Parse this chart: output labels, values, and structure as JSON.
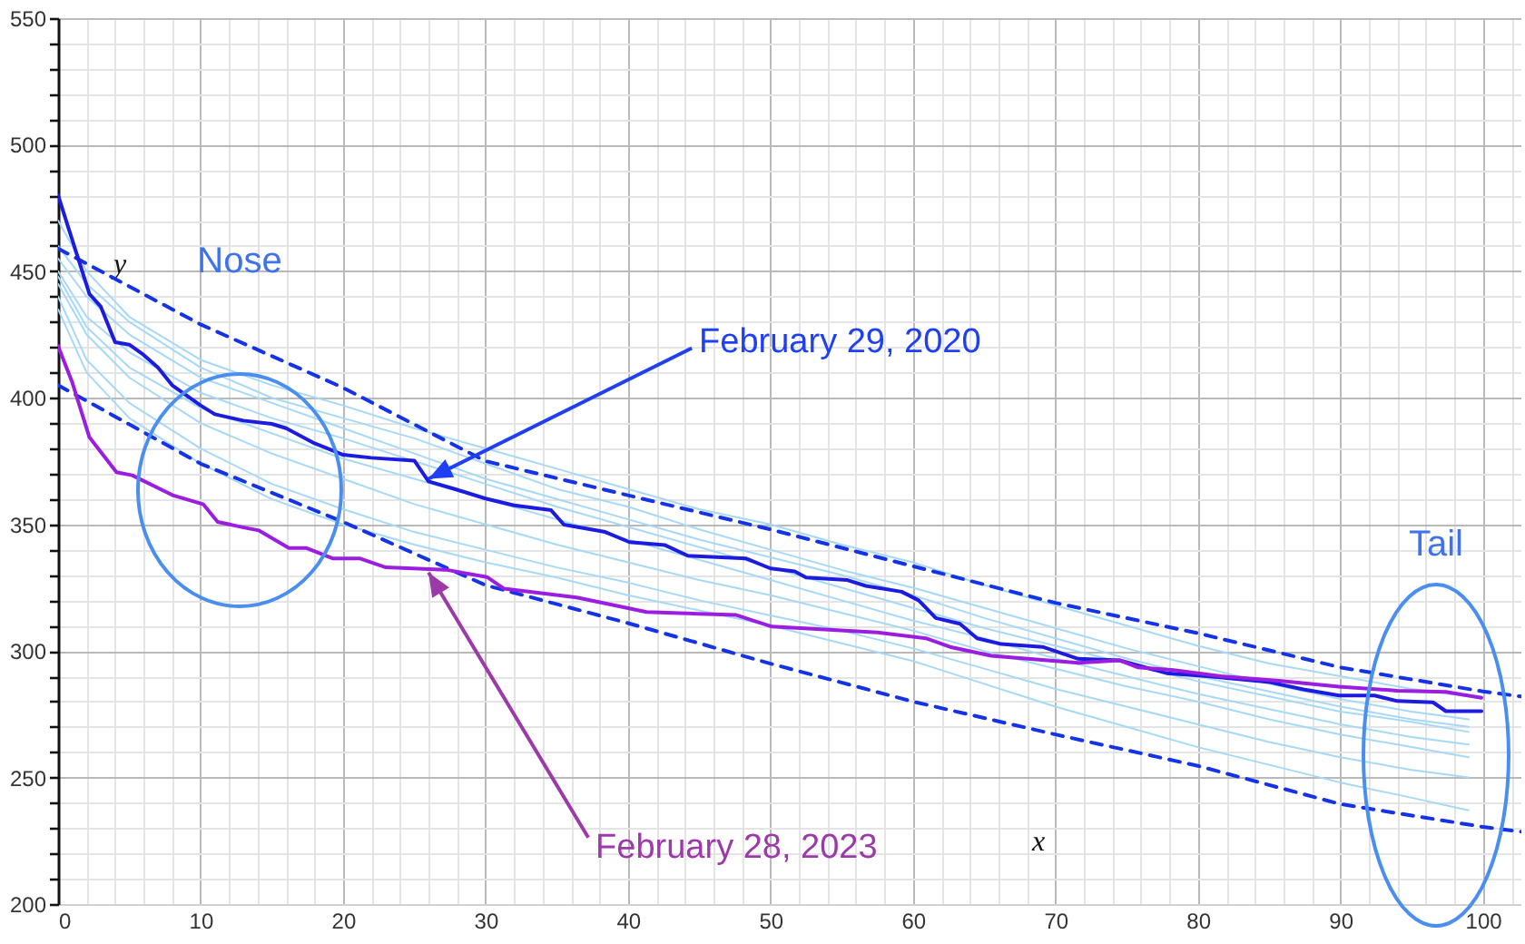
{
  "chart_data": {
    "type": "line",
    "xlabel": "x",
    "ylabel": "y",
    "xlim": [
      0,
      102.7
    ],
    "ylim": [
      200,
      550
    ],
    "xticks": [
      0,
      {
        "value": 2,
        "label": null
      },
      {
        "value": 4,
        "label": null
      },
      {
        "value": 6,
        "label": null
      },
      {
        "value": 8,
        "label": null
      },
      10,
      {
        "value": 12,
        "label": null
      },
      {
        "value": 14,
        "label": null
      },
      {
        "value": 16,
        "label": null
      },
      {
        "value": 18,
        "label": null
      },
      20,
      {
        "value": 22,
        "label": null
      },
      {
        "value": 24,
        "label": null
      },
      {
        "value": 26,
        "label": null
      },
      {
        "value": 28,
        "label": null
      },
      30,
      {
        "value": 32,
        "label": null
      },
      {
        "value": 34,
        "label": null
      },
      {
        "value": 36,
        "label": null
      },
      {
        "value": 38,
        "label": null
      },
      40,
      {
        "value": 42,
        "label": null
      },
      {
        "value": 44,
        "label": null
      },
      {
        "value": 46,
        "label": null
      },
      {
        "value": 48,
        "label": null
      },
      50,
      {
        "value": 52,
        "label": null
      },
      {
        "value": 54,
        "label": null
      },
      {
        "value": 56,
        "label": null
      },
      {
        "value": 58,
        "label": null
      },
      60,
      {
        "value": 62,
        "label": null
      },
      {
        "value": 64,
        "label": null
      },
      {
        "value": 66,
        "label": null
      },
      {
        "value": 68,
        "label": null
      },
      70,
      {
        "value": 72,
        "label": null
      },
      {
        "value": 74,
        "label": null
      },
      {
        "value": 76,
        "label": null
      },
      {
        "value": 78,
        "label": null
      },
      80,
      {
        "value": 82,
        "label": null
      },
      {
        "value": 84,
        "label": null
      },
      {
        "value": 86,
        "label": null
      },
      {
        "value": 88,
        "label": null
      },
      90,
      {
        "value": 92,
        "label": null
      },
      {
        "value": 94,
        "label": null
      },
      {
        "value": 96,
        "label": null
      },
      {
        "value": 98,
        "label": null
      },
      100,
      {
        "value": 102,
        "label": null
      }
    ],
    "yticks": [
      200,
      {
        "value": 210,
        "label": null
      },
      {
        "value": 220,
        "label": null
      },
      {
        "value": 230,
        "label": null
      },
      {
        "value": 240,
        "label": null
      },
      250,
      {
        "value": 260,
        "label": null
      },
      {
        "value": 270,
        "label": null
      },
      {
        "value": 280,
        "label": null
      },
      {
        "value": 290,
        "label": null
      },
      300,
      {
        "value": 310,
        "label": null
      },
      {
        "value": 320,
        "label": null
      },
      {
        "value": 330,
        "label": null
      },
      {
        "value": 340,
        "label": null
      },
      350,
      {
        "value": 360,
        "label": null
      },
      {
        "value": 370,
        "label": null
      },
      {
        "value": 380,
        "label": null
      },
      {
        "value": 390,
        "label": null
      },
      400,
      {
        "value": 410,
        "label": null
      },
      {
        "value": 420,
        "label": null
      },
      {
        "value": 430,
        "label": null
      },
      {
        "value": 440,
        "label": null
      },
      450,
      {
        "value": 460,
        "label": null
      },
      {
        "value": 470,
        "label": null
      },
      {
        "value": 480,
        "label": null
      },
      {
        "value": 490,
        "label": null
      },
      500,
      {
        "value": 510,
        "label": null
      },
      {
        "value": 520,
        "label": null
      },
      {
        "value": 530,
        "label": null
      },
      {
        "value": 540,
        "label": null
      },
      550
    ],
    "grid": true,
    "marker": "none",
    "annotations": [
      "Nose",
      "Tail",
      {
        "text": "February 29, 2020",
        "x": 26,
        "y": 368
      },
      {
        "text": "February 28, 2023",
        "x": 26,
        "y": 331
      }
    ],
    "series": [
      {
        "color": "#a6d8f7",
        "x": [
          0,
          2,
          5,
          10,
          15,
          20,
          25,
          30,
          35,
          40,
          45,
          50,
          55,
          60,
          65,
          70,
          75,
          80,
          85,
          90,
          95,
          99
        ],
        "values": [
          470,
          450,
          432,
          415,
          405,
          397,
          388,
          380,
          372,
          364,
          356,
          350,
          342,
          335,
          326,
          318,
          310,
          302,
          295,
          290,
          285,
          282
        ]
      },
      {
        "color": "#a6d8f7",
        "x": [
          0,
          2,
          5,
          10,
          15,
          20,
          25,
          30,
          35,
          40,
          45,
          50,
          55,
          60,
          65,
          70,
          75,
          80,
          85,
          90,
          95,
          99
        ],
        "values": [
          460,
          445,
          430,
          412,
          400,
          392,
          384,
          374,
          364,
          357,
          348,
          340,
          332,
          325,
          317,
          309,
          301,
          294,
          287,
          281,
          276,
          273
        ]
      },
      {
        "color": "#a6d8f7",
        "x": [
          0,
          2,
          5,
          10,
          15,
          20,
          25,
          30,
          35,
          40,
          45,
          50,
          55,
          60,
          65,
          70,
          75,
          80,
          85,
          90,
          95,
          99
        ],
        "values": [
          455,
          440,
          425,
          408,
          398,
          388,
          378,
          368,
          360,
          352,
          344,
          337,
          330,
          322,
          313,
          305,
          297,
          290,
          284,
          278,
          273,
          270
        ]
      },
      {
        "color": "#a6d8f7",
        "x": [
          0,
          2,
          5,
          10,
          15,
          20,
          25,
          30,
          35,
          40,
          45,
          50,
          55,
          60,
          65,
          70,
          75,
          80,
          85,
          90,
          95,
          99
        ],
        "values": [
          450,
          432,
          418,
          402,
          392,
          384,
          375,
          366,
          357,
          349,
          341,
          333,
          325,
          317,
          309,
          302,
          295,
          288,
          282,
          276,
          272,
          268
        ]
      },
      {
        "color": "#a6d8f7",
        "x": [
          0,
          2,
          5,
          10,
          15,
          20,
          25,
          30,
          35,
          40,
          45,
          50,
          55,
          60,
          65,
          70,
          75,
          80,
          85,
          90,
          95,
          99
        ],
        "values": [
          448,
          428,
          412,
          396,
          386,
          376,
          368,
          360,
          352,
          344,
          336,
          328,
          320,
          312,
          305,
          297,
          290,
          283,
          277,
          271,
          266,
          263
        ]
      },
      {
        "color": "#a6d8f7",
        "x": [
          0,
          2,
          5,
          10,
          15,
          20,
          25,
          30,
          35,
          40,
          45,
          50,
          55,
          60,
          65,
          70,
          75,
          80,
          85,
          90,
          95,
          99
        ],
        "values": [
          445,
          425,
          408,
          390,
          378,
          368,
          358,
          350,
          342,
          335,
          328,
          322,
          315,
          308,
          300,
          293,
          286,
          280,
          273,
          267,
          262,
          258
        ]
      },
      {
        "color": "#a6d8f7",
        "x": [
          0,
          2,
          5,
          10,
          15,
          20,
          25,
          30,
          35,
          40,
          45,
          50,
          55,
          60,
          65,
          70,
          75,
          80,
          85,
          90,
          95,
          99
        ],
        "values": [
          440,
          415,
          398,
          380,
          366,
          356,
          347,
          340,
          333,
          327,
          320,
          314,
          308,
          301,
          293,
          285,
          278,
          271,
          264,
          258,
          253,
          250
        ]
      },
      {
        "color": "#a6d8f7",
        "x": [
          0,
          2,
          5,
          10,
          15,
          20,
          25,
          30,
          35,
          40,
          45,
          50,
          55,
          60,
          65,
          70,
          75,
          80,
          85,
          90,
          95,
          99
        ],
        "values": [
          435,
          410,
          392,
          374,
          360,
          350,
          342,
          335,
          329,
          322,
          316,
          310,
          303,
          296,
          287,
          278,
          270,
          262,
          255,
          248,
          242,
          237
        ]
      },
      {
        "color": "#1432e6",
        "line_style": "dashed",
        "x": [
          0,
          10,
          20,
          30,
          50,
          70,
          80,
          90,
          100,
          102.7
        ],
        "values": [
          459,
          429,
          404,
          375,
          348,
          319,
          307,
          293.5,
          284,
          282
        ]
      },
      {
        "color": "#1432e6",
        "line_style": "dashed",
        "x": [
          0,
          10,
          20,
          30,
          40,
          50,
          60,
          70,
          80,
          90,
          100,
          102.7
        ],
        "values": [
          405,
          374,
          351,
          326,
          311,
          295,
          280,
          267,
          254.6,
          239.5,
          230.5,
          228.6
        ]
      },
      {
        "color": "#1c1ce0",
        "x": [
          0,
          2.2,
          3,
          4,
          5,
          6,
          7,
          8,
          10,
          11,
          13,
          15,
          16,
          18,
          19,
          20,
          22,
          25,
          26,
          28,
          30,
          32,
          34.6,
          35.5,
          38.4,
          40.1,
          42.6,
          44.2,
          48.3,
          50,
          51.7,
          52.5,
          55.4,
          56.7,
          59.2,
          60.4,
          61.6,
          63.3,
          64.5,
          66.2,
          69.1,
          71.6,
          74.5,
          77.8,
          80.7,
          84.9,
          87.4,
          89.9,
          92.4,
          94,
          96.5,
          97.4,
          99.9
        ],
        "values": [
          480,
          441,
          436,
          422,
          421,
          417,
          412,
          405,
          397,
          393.5,
          391,
          389.7,
          388,
          382,
          379.8,
          377.5,
          376.3,
          375.2,
          367,
          363.7,
          360.2,
          357.5,
          355.6,
          349.9,
          347,
          343,
          341.8,
          337.6,
          336.5,
          332.6,
          331.4,
          329,
          328,
          325.7,
          323.4,
          320,
          313,
          310.7,
          305,
          302.7,
          301.6,
          296.9,
          296.3,
          291.2,
          290,
          287.8,
          284.8,
          282.4,
          282.4,
          280.2,
          279.7,
          276.2,
          276.2
        ]
      },
      {
        "color": "#9b1ee0",
        "x": [
          0,
          1,
          2.2,
          4.1,
          5.2,
          8.1,
          10.2,
          11.2,
          13.1,
          14.1,
          16.2,
          17.4,
          19.3,
          21.2,
          23,
          27.2,
          30.1,
          31.3,
          36.4,
          38.4,
          41.3,
          47.6,
          50.1,
          53.8,
          57.5,
          60.9,
          62.6,
          65.5,
          71.6,
          74.5,
          75.8,
          78.3,
          81.6,
          85.7,
          89.9,
          94,
          97.4,
          99.9
        ],
        "values": [
          420.5,
          406,
          384.4,
          370.6,
          369.4,
          361.4,
          357.9,
          351,
          348.7,
          347.6,
          340.7,
          340.7,
          336.5,
          336.5,
          333,
          332.1,
          329.2,
          324.6,
          321.1,
          318.8,
          315.4,
          314.2,
          309.6,
          308.5,
          307.3,
          305,
          301.6,
          298.1,
          295.3,
          296.3,
          293.5,
          292.4,
          290,
          288.2,
          285.9,
          284.3,
          283.8,
          281.5
        ]
      }
    ]
  }
}
